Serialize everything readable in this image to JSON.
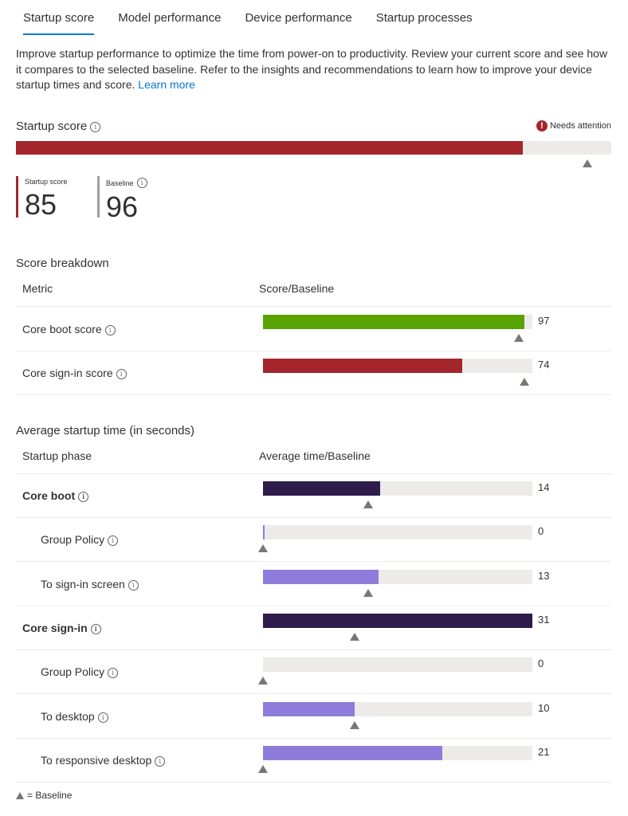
{
  "tabs": [
    "Startup score",
    "Model performance",
    "Device performance",
    "Startup processes"
  ],
  "description": {
    "text": "Improve startup performance to optimize the time from power-on to productivity. Review your current score and see how it compares to the selected baseline. Refer to the insights and recommendations to learn how to improve your device startup times and score. ",
    "link": "Learn more"
  },
  "startup_score": {
    "title": "Startup score",
    "status": "Needs attention",
    "score_label": "Startup score",
    "score": "85",
    "baseline_label": "Baseline",
    "baseline": "96",
    "score_fraction": 0.85,
    "baseline_fraction": 0.96,
    "colors": {
      "fill": "#a4262c",
      "track": "#edebe9",
      "baseline_marker": "#797775"
    }
  },
  "score_breakdown": {
    "title": "Score breakdown",
    "col_metric": "Metric",
    "col_value": "Score/Baseline",
    "rows": [
      {
        "name": "Core boot score",
        "value": "97",
        "fraction": 0.97,
        "baseline_fraction": 0.95,
        "color": "#57a300"
      },
      {
        "name": "Core sign-in score",
        "value": "74",
        "fraction": 0.74,
        "baseline_fraction": 0.97,
        "color": "#a4262c"
      }
    ]
  },
  "startup_time": {
    "title": "Average startup time (in seconds)",
    "col_phase": "Startup phase",
    "col_value": "Average time/Baseline",
    "rows": [
      {
        "name": "Core boot",
        "value": "14",
        "level": "top",
        "fraction": 0.435,
        "baseline_fraction": 0.39,
        "color": "#2f1b4c"
      },
      {
        "name": "Group Policy",
        "value": "0",
        "level": "sub",
        "fraction": 0.004,
        "baseline_fraction": 0.0,
        "color": "#8e7cda"
      },
      {
        "name": "To sign-in screen",
        "value": "13",
        "level": "sub",
        "fraction": 0.43,
        "baseline_fraction": 0.39,
        "color": "#8e7cda"
      },
      {
        "name": "Core sign-in",
        "value": "31",
        "level": "top",
        "fraction": 1.0,
        "baseline_fraction": 0.34,
        "color": "#2f1b4c"
      },
      {
        "name": "Group Policy",
        "value": "0",
        "level": "sub",
        "fraction": 0.0,
        "baseline_fraction": 0.0,
        "color": "#8e7cda"
      },
      {
        "name": "To desktop",
        "value": "10",
        "level": "sub",
        "fraction": 0.34,
        "baseline_fraction": 0.34,
        "color": "#8e7cda"
      },
      {
        "name": "To responsive desktop",
        "value": "21",
        "level": "sub",
        "fraction": 0.665,
        "baseline_fraction": 0.0,
        "color": "#8e7cda"
      }
    ]
  },
  "legend": {
    "text": "= Baseline",
    "icon": "triangle-up-icon"
  }
}
